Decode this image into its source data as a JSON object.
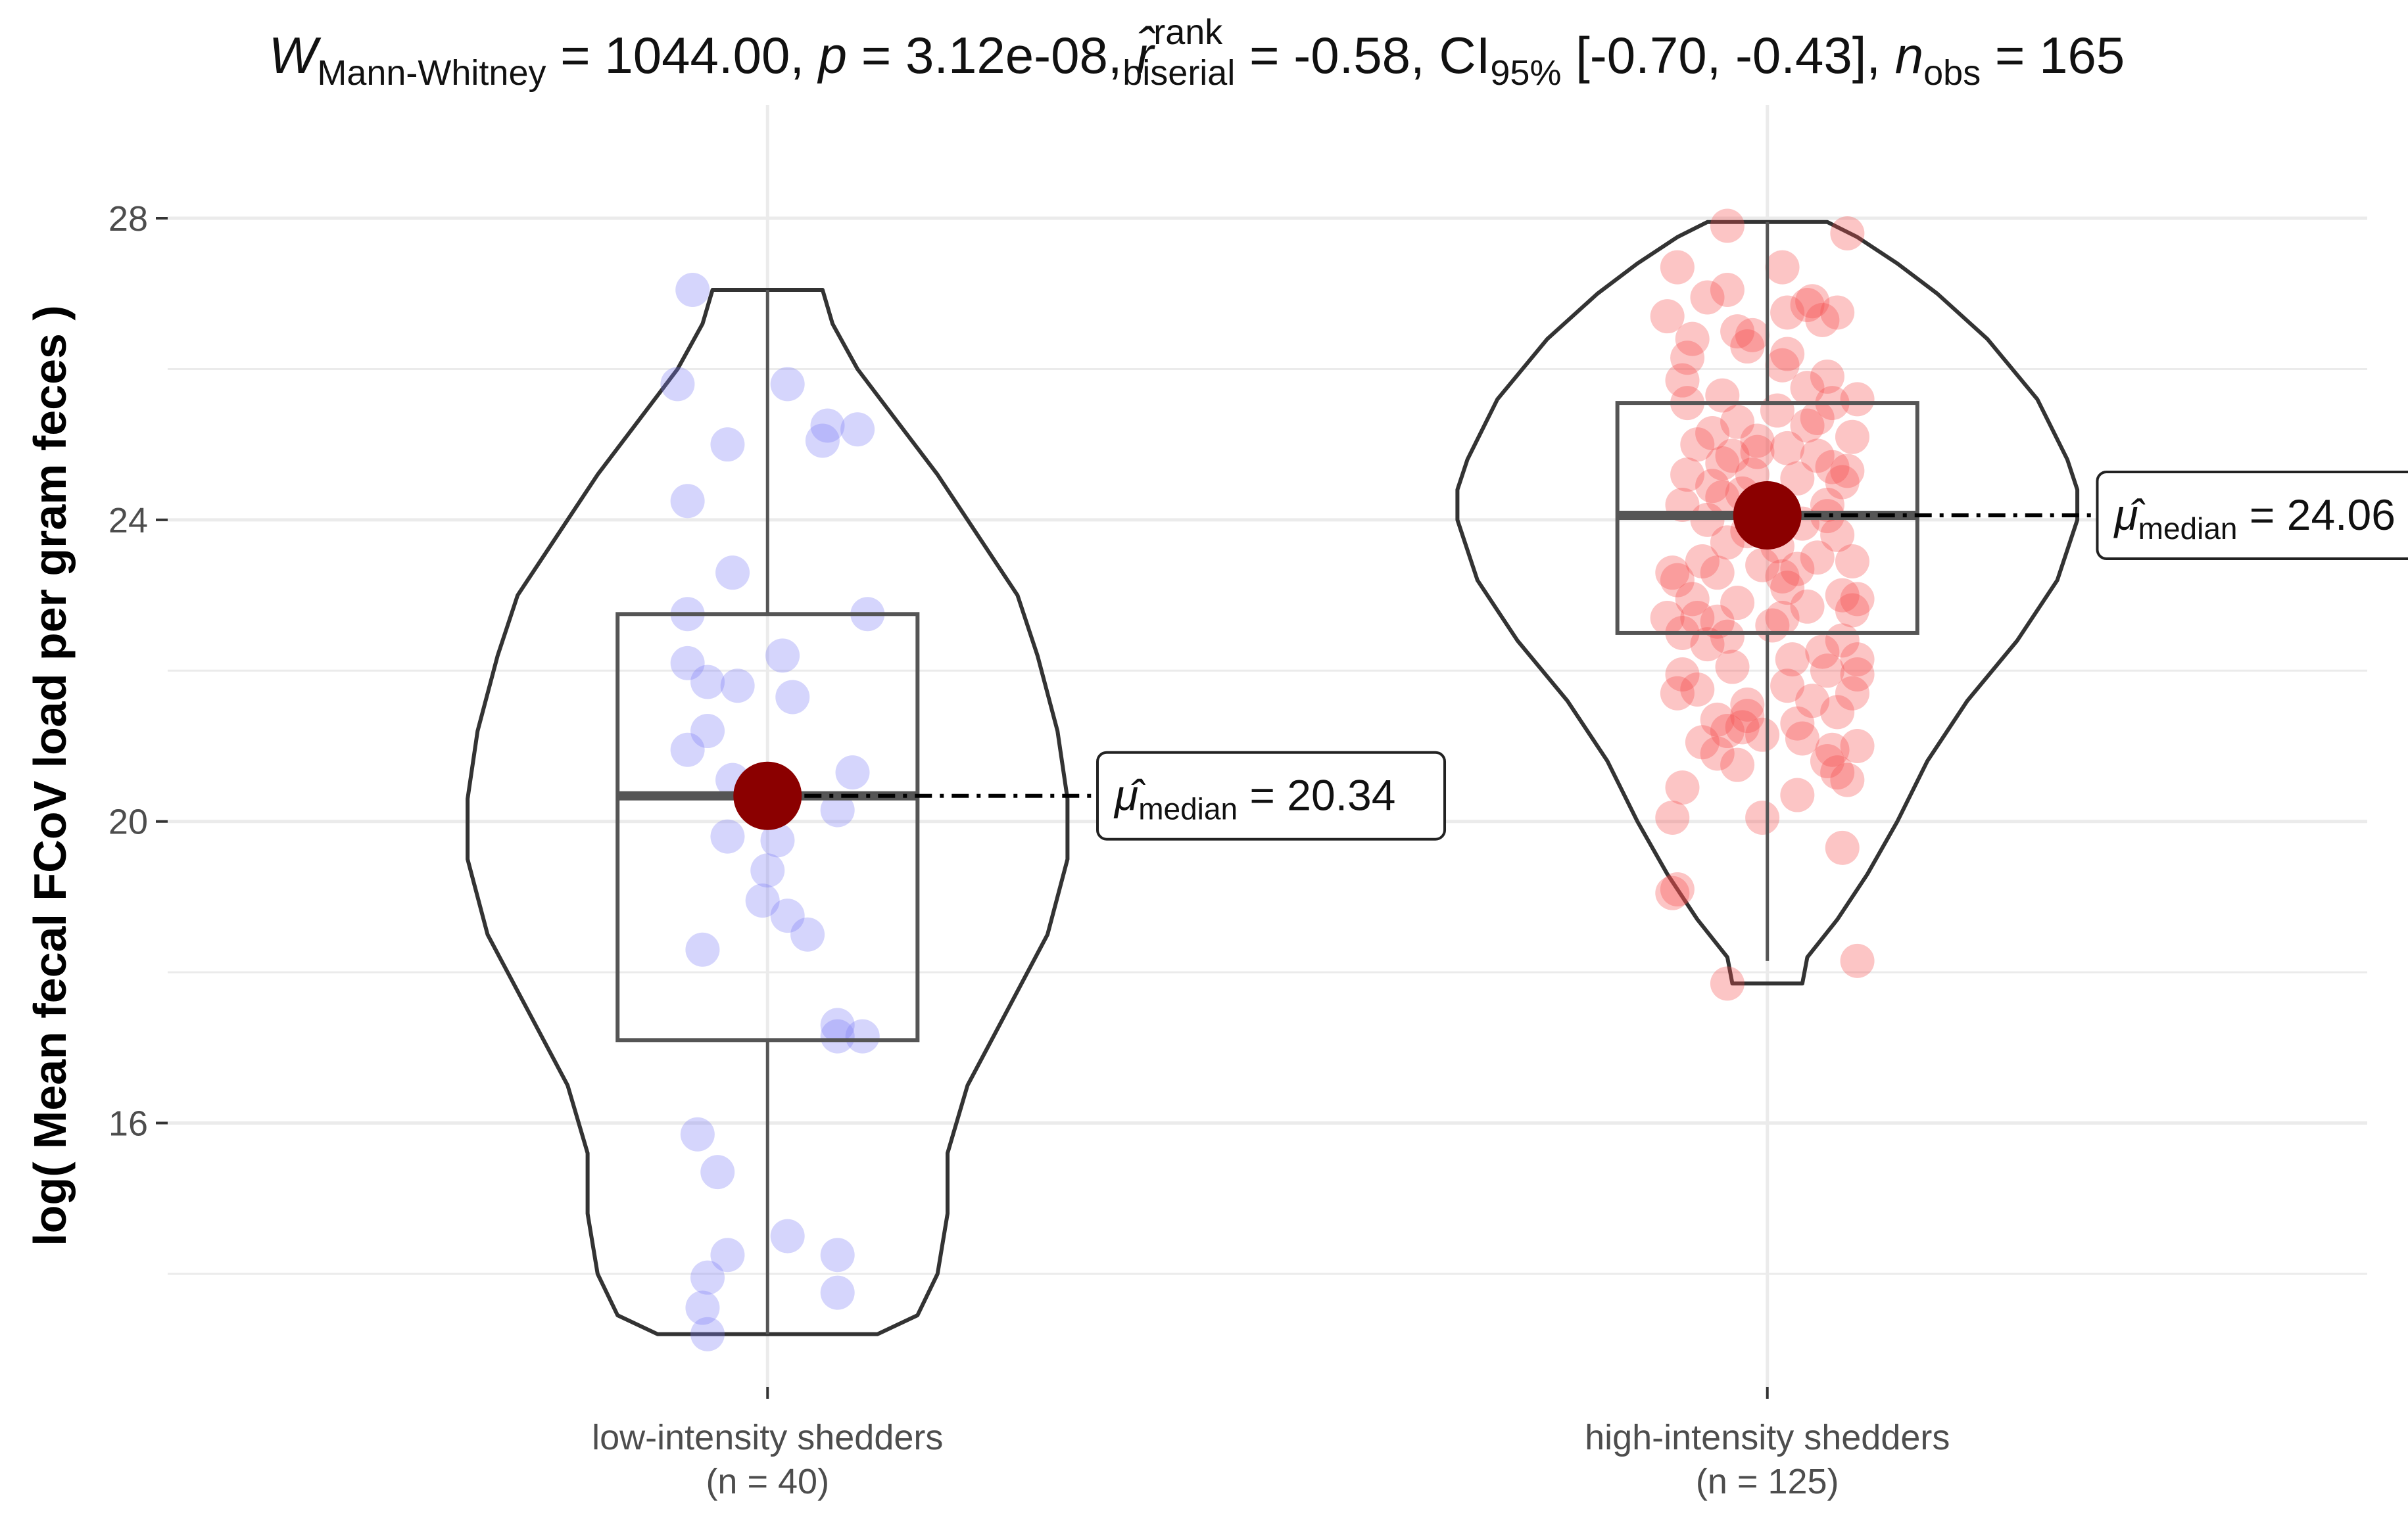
{
  "chart_data": {
    "type": "violin-box-jitter",
    "title_parts": {
      "W": "W",
      "W_sub": "Mann-Whitney",
      "W_value": " = 1044.00, ",
      "p": "p",
      "p_value": " = 3.12e-08, ",
      "r": "r̂",
      "r_sup": "rank",
      "r_sub": "biserial",
      "r_value": " = -0.58, ",
      "CI": "CI",
      "CI_sub": "95%",
      "CI_value": " [-0.70, -0.43], ",
      "n": "n",
      "n_sub": "obs",
      "n_value": " = 165"
    },
    "ylabel": "log( Mean fecal FCoV load per gram feces )",
    "ylim": [
      12.5,
      29.5
    ],
    "yticks": [
      16,
      20,
      24,
      28
    ],
    "ytick_labels": [
      "16",
      "20",
      "24",
      "28"
    ],
    "grid": true,
    "categories": [
      "low-intensity shedders",
      "high-intensity shedders"
    ],
    "category_counts": [
      "(n = 40)",
      "(n = 125)"
    ],
    "point_colors": [
      "#7b7bf7",
      "#f74b4b"
    ],
    "median_marker_color": "#8b0000",
    "box_stats": [
      {
        "q1": 17.1,
        "median": 20.34,
        "q3": 22.75,
        "whisker_low": 13.2,
        "whisker_high": 27.05
      },
      {
        "q1": 22.5,
        "median": 24.06,
        "q3": 25.55,
        "whisker_low": 18.15,
        "whisker_high": 27.95
      }
    ],
    "violin_profiles": [
      {
        "y": [
          13.2,
          13.45,
          14.0,
          14.8,
          15.6,
          16.5,
          17.5,
          18.5,
          19.5,
          20.3,
          21.2,
          22.2,
          23.0,
          23.8,
          24.6,
          25.3,
          26.0,
          26.6,
          27.05
        ],
        "width": [
          0.11,
          0.15,
          0.17,
          0.18,
          0.18,
          0.2,
          0.24,
          0.28,
          0.3,
          0.3,
          0.29,
          0.27,
          0.25,
          0.21,
          0.17,
          0.13,
          0.09,
          0.065,
          0.055
        ]
      },
      {
        "y": [
          17.85,
          18.2,
          18.7,
          19.3,
          20.0,
          20.8,
          21.6,
          22.4,
          23.2,
          24.0,
          24.4,
          24.8,
          25.6,
          26.4,
          27.0,
          27.4,
          27.75,
          27.95
        ],
        "width": [
          0.035,
          0.04,
          0.07,
          0.1,
          0.13,
          0.16,
          0.2,
          0.25,
          0.29,
          0.31,
          0.31,
          0.3,
          0.27,
          0.22,
          0.17,
          0.13,
          0.09,
          0.06
        ]
      }
    ],
    "points": [
      [
        {
          "dx": -0.075,
          "y": 27.05
        },
        {
          "dx": -0.09,
          "y": 25.8
        },
        {
          "dx": 0.02,
          "y": 25.8
        },
        {
          "dx": -0.04,
          "y": 25.0
        },
        {
          "dx": 0.06,
          "y": 25.25
        },
        {
          "dx": 0.09,
          "y": 25.2
        },
        {
          "dx": 0.055,
          "y": 25.05
        },
        {
          "dx": -0.08,
          "y": 24.25
        },
        {
          "dx": -0.035,
          "y": 23.3
        },
        {
          "dx": -0.08,
          "y": 22.75
        },
        {
          "dx": 0.1,
          "y": 22.75
        },
        {
          "dx": 0.015,
          "y": 22.2
        },
        {
          "dx": -0.08,
          "y": 22.1
        },
        {
          "dx": -0.06,
          "y": 21.85
        },
        {
          "dx": -0.03,
          "y": 21.8
        },
        {
          "dx": 0.025,
          "y": 21.65
        },
        {
          "dx": -0.06,
          "y": 21.2
        },
        {
          "dx": -0.08,
          "y": 20.95
        },
        {
          "dx": -0.035,
          "y": 20.55
        },
        {
          "dx": 0.085,
          "y": 20.65
        },
        {
          "dx": 0.07,
          "y": 20.15
        },
        {
          "dx": -0.04,
          "y": 19.8
        },
        {
          "dx": 0.01,
          "y": 19.75
        },
        {
          "dx": 0.0,
          "y": 19.35
        },
        {
          "dx": -0.005,
          "y": 18.95
        },
        {
          "dx": 0.02,
          "y": 18.75
        },
        {
          "dx": 0.04,
          "y": 18.5
        },
        {
          "dx": -0.065,
          "y": 18.3
        },
        {
          "dx": 0.07,
          "y": 17.3
        },
        {
          "dx": 0.07,
          "y": 17.15
        },
        {
          "dx": 0.095,
          "y": 17.15
        },
        {
          "dx": -0.07,
          "y": 15.85
        },
        {
          "dx": -0.05,
          "y": 15.35
        },
        {
          "dx": 0.02,
          "y": 14.5
        },
        {
          "dx": 0.07,
          "y": 14.25
        },
        {
          "dx": -0.04,
          "y": 14.25
        },
        {
          "dx": -0.06,
          "y": 13.95
        },
        {
          "dx": 0.07,
          "y": 13.75
        },
        {
          "dx": -0.065,
          "y": 13.55
        },
        {
          "dx": -0.06,
          "y": 13.2
        }
      ],
      [
        {
          "dx": -0.04,
          "y": 27.9
        },
        {
          "dx": 0.08,
          "y": 27.8
        },
        {
          "dx": -0.09,
          "y": 27.35
        },
        {
          "dx": 0.015,
          "y": 27.35
        },
        {
          "dx": -0.04,
          "y": 27.05
        },
        {
          "dx": 0.04,
          "y": 26.85
        },
        {
          "dx": 0.02,
          "y": 26.75
        },
        {
          "dx": 0.07,
          "y": 26.75
        },
        {
          "dx": -0.1,
          "y": 26.7
        },
        {
          "dx": 0.055,
          "y": 26.65
        },
        {
          "dx": -0.03,
          "y": 26.5
        },
        {
          "dx": -0.015,
          "y": 26.45
        },
        {
          "dx": -0.02,
          "y": 26.3
        },
        {
          "dx": 0.02,
          "y": 26.2
        },
        {
          "dx": -0.075,
          "y": 26.4
        },
        {
          "dx": -0.08,
          "y": 26.15
        },
        {
          "dx": 0.015,
          "y": 26.05
        },
        {
          "dx": -0.085,
          "y": 25.85
        },
        {
          "dx": 0.06,
          "y": 25.9
        },
        {
          "dx": 0.04,
          "y": 25.75
        },
        {
          "dx": -0.045,
          "y": 25.65
        },
        {
          "dx": 0.09,
          "y": 25.6
        },
        {
          "dx": -0.08,
          "y": 25.55
        },
        {
          "dx": 0.065,
          "y": 25.55
        },
        {
          "dx": 0.01,
          "y": 25.45
        },
        {
          "dx": -0.03,
          "y": 25.3
        },
        {
          "dx": 0.04,
          "y": 25.25
        },
        {
          "dx": -0.055,
          "y": 25.15
        },
        {
          "dx": 0.085,
          "y": 25.1
        },
        {
          "dx": -0.01,
          "y": 25.05
        },
        {
          "dx": 0.02,
          "y": 24.95
        },
        {
          "dx": 0.05,
          "y": 24.85
        },
        {
          "dx": -0.045,
          "y": 24.75
        },
        {
          "dx": 0.065,
          "y": 24.7
        },
        {
          "dx": -0.08,
          "y": 24.6
        },
        {
          "dx": -0.015,
          "y": 24.6
        },
        {
          "dx": 0.03,
          "y": 24.55
        },
        {
          "dx": -0.055,
          "y": 24.45
        },
        {
          "dx": 0.075,
          "y": 24.5
        },
        {
          "dx": -0.025,
          "y": 24.35
        },
        {
          "dx": -0.045,
          "y": 24.3
        },
        {
          "dx": -0.085,
          "y": 24.2
        },
        {
          "dx": 0.06,
          "y": 24.2
        },
        {
          "dx": 0.0,
          "y": 24.1
        },
        {
          "dx": -0.06,
          "y": 24.0
        },
        {
          "dx": 0.035,
          "y": 23.95
        },
        {
          "dx": -0.02,
          "y": 23.85
        },
        {
          "dx": 0.07,
          "y": 23.8
        },
        {
          "dx": -0.04,
          "y": 23.7
        },
        {
          "dx": 0.01,
          "y": 23.65
        },
        {
          "dx": 0.05,
          "y": 23.5
        },
        {
          "dx": -0.065,
          "y": 23.45
        },
        {
          "dx": 0.085,
          "y": 23.45
        },
        {
          "dx": -0.005,
          "y": 23.4
        },
        {
          "dx": 0.03,
          "y": 23.35
        },
        {
          "dx": -0.05,
          "y": 23.3
        },
        {
          "dx": -0.095,
          "y": 23.3
        },
        {
          "dx": -0.09,
          "y": 23.2
        },
        {
          "dx": 0.02,
          "y": 23.1
        },
        {
          "dx": 0.075,
          "y": 23.0
        },
        {
          "dx": 0.09,
          "y": 22.95
        },
        {
          "dx": -0.03,
          "y": 22.9
        },
        {
          "dx": 0.04,
          "y": 22.85
        },
        {
          "dx": 0.085,
          "y": 22.8
        },
        {
          "dx": -0.1,
          "y": 22.7
        },
        {
          "dx": -0.07,
          "y": 22.7
        },
        {
          "dx": -0.05,
          "y": 22.65
        },
        {
          "dx": 0.005,
          "y": 22.6
        },
        {
          "dx": -0.085,
          "y": 22.5
        },
        {
          "dx": -0.04,
          "y": 22.45
        },
        {
          "dx": -0.06,
          "y": 22.35
        },
        {
          "dx": 0.075,
          "y": 22.4
        },
        {
          "dx": 0.055,
          "y": 22.25
        },
        {
          "dx": 0.09,
          "y": 22.15
        },
        {
          "dx": -0.035,
          "y": 22.05
        },
        {
          "dx": 0.06,
          "y": 22.0
        },
        {
          "dx": 0.09,
          "y": 21.95
        },
        {
          "dx": -0.085,
          "y": 21.95
        },
        {
          "dx": 0.02,
          "y": 21.8
        },
        {
          "dx": -0.07,
          "y": 21.75
        },
        {
          "dx": -0.09,
          "y": 21.7
        },
        {
          "dx": 0.085,
          "y": 21.7
        },
        {
          "dx": 0.045,
          "y": 21.6
        },
        {
          "dx": -0.02,
          "y": 21.55
        },
        {
          "dx": 0.07,
          "y": 21.45
        },
        {
          "dx": -0.05,
          "y": 21.35
        },
        {
          "dx": 0.03,
          "y": 21.3
        },
        {
          "dx": -0.025,
          "y": 21.25
        },
        {
          "dx": -0.04,
          "y": 21.2
        },
        {
          "dx": -0.005,
          "y": 21.15
        },
        {
          "dx": 0.035,
          "y": 21.1
        },
        {
          "dx": -0.065,
          "y": 21.05
        },
        {
          "dx": 0.09,
          "y": 21.0
        },
        {
          "dx": -0.05,
          "y": 20.9
        },
        {
          "dx": 0.06,
          "y": 20.8
        },
        {
          "dx": -0.03,
          "y": 20.75
        },
        {
          "dx": 0.07,
          "y": 20.65
        },
        {
          "dx": 0.08,
          "y": 20.55
        },
        {
          "dx": -0.085,
          "y": 20.45
        },
        {
          "dx": 0.03,
          "y": 20.35
        },
        {
          "dx": -0.095,
          "y": 20.05
        },
        {
          "dx": -0.005,
          "y": 20.05
        },
        {
          "dx": 0.075,
          "y": 19.65
        },
        {
          "dx": -0.09,
          "y": 19.1
        },
        {
          "dx": -0.095,
          "y": 19.05
        },
        {
          "dx": 0.09,
          "y": 18.15
        },
        {
          "dx": -0.04,
          "y": 17.85
        },
        {
          "dx": 0.045,
          "y": 26.9
        },
        {
          "dx": 0.06,
          "y": 24.05
        },
        {
          "dx": -0.01,
          "y": 24.9
        },
        {
          "dx": 0.05,
          "y": 25.35
        },
        {
          "dx": -0.07,
          "y": 25.0
        },
        {
          "dx": 0.015,
          "y": 23.25
        },
        {
          "dx": -0.075,
          "y": 22.95
        },
        {
          "dx": 0.025,
          "y": 22.15
        },
        {
          "dx": -0.02,
          "y": 21.4
        },
        {
          "dx": 0.065,
          "y": 20.95
        },
        {
          "dx": -0.06,
          "y": 26.95
        },
        {
          "dx": 0.08,
          "y": 24.65
        },
        {
          "dx": -0.035,
          "y": 24.85
        },
        {
          "dx": 0.015,
          "y": 22.7
        }
      ]
    ],
    "median_labels": [
      {
        "symbol": "μ̂",
        "sub": "median",
        "text": " = 20.34"
      },
      {
        "symbol": "μ̂",
        "sub": "median",
        "text": " = 24.06"
      }
    ]
  }
}
